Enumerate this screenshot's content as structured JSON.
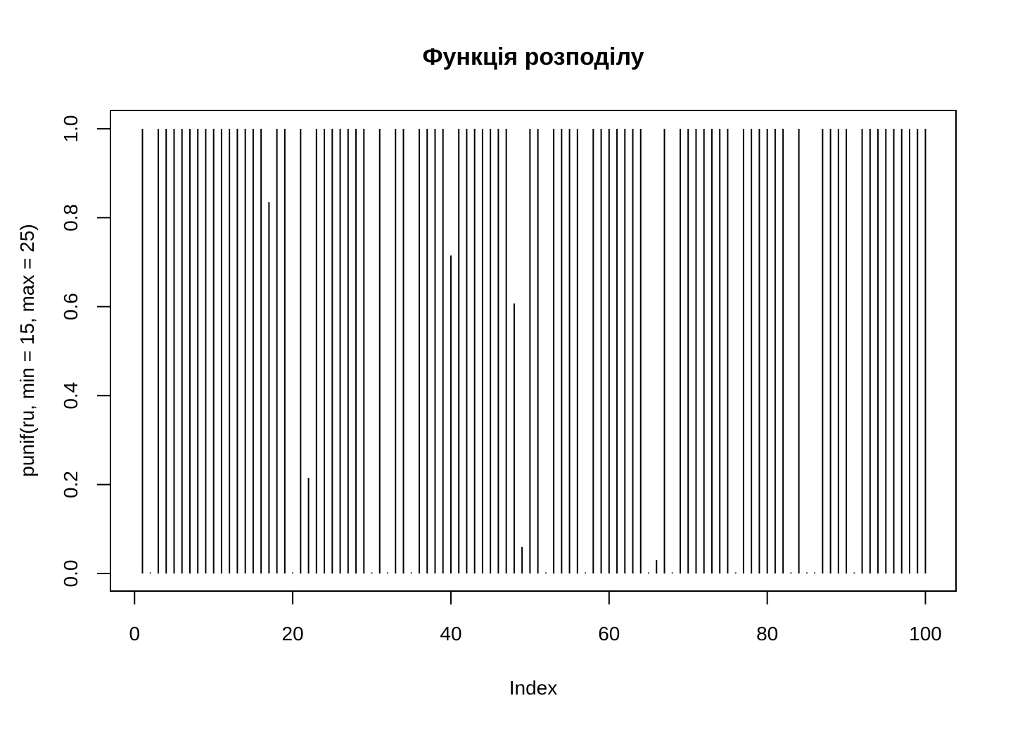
{
  "chart_data": {
    "type": "bar",
    "style": "histogram-lines",
    "title": "Функція розподілу",
    "xlabel": "Index",
    "ylabel": "punif(ru, min = 15, max = 25)",
    "xlim": [
      1,
      100
    ],
    "ylim": [
      0,
      1
    ],
    "x_ticks": [
      0,
      20,
      40,
      60,
      80,
      100
    ],
    "x_tick_labels": [
      "0",
      "20",
      "40",
      "60",
      "80",
      "100"
    ],
    "y_ticks": [
      0,
      0.2,
      0.4,
      0.6,
      0.8,
      1.0
    ],
    "y_tick_labels": [
      "0.0",
      "0.2",
      "0.4",
      "0.6",
      "0.8",
      "1.0"
    ],
    "grid": false,
    "legend": "none",
    "x": [
      1,
      2,
      3,
      4,
      5,
      6,
      7,
      8,
      9,
      10,
      11,
      12,
      13,
      14,
      15,
      16,
      17,
      18,
      19,
      20,
      21,
      22,
      23,
      24,
      25,
      26,
      27,
      28,
      29,
      30,
      31,
      32,
      33,
      34,
      35,
      36,
      37,
      38,
      39,
      40,
      41,
      42,
      43,
      44,
      45,
      46,
      47,
      48,
      49,
      50,
      51,
      52,
      53,
      54,
      55,
      56,
      57,
      58,
      59,
      60,
      61,
      62,
      63,
      64,
      65,
      66,
      67,
      68,
      69,
      70,
      71,
      72,
      73,
      74,
      75,
      76,
      77,
      78,
      79,
      80,
      81,
      82,
      83,
      84,
      85,
      86,
      87,
      88,
      89,
      90,
      91,
      92,
      93,
      94,
      95,
      96,
      97,
      98,
      99,
      100
    ],
    "values": [
      1,
      0,
      1,
      1,
      1,
      1,
      1,
      1,
      1,
      1,
      1,
      1,
      1,
      1,
      1,
      1,
      0.835,
      1,
      1,
      0,
      1,
      0.215,
      1,
      1,
      1,
      1,
      1,
      1,
      1,
      0,
      1,
      0,
      1,
      1,
      0,
      1,
      1,
      1,
      1,
      0.715,
      1,
      1,
      1,
      1,
      1,
      1,
      1,
      0.607,
      0.06,
      1,
      1,
      0,
      1,
      1,
      1,
      1,
      0,
      1,
      1,
      1,
      1,
      1,
      1,
      1,
      0,
      0.03,
      1,
      0,
      1,
      1,
      1,
      1,
      1,
      1,
      1,
      0,
      1,
      1,
      1,
      1,
      1,
      1,
      0,
      1,
      0,
      0,
      1,
      1,
      1,
      1,
      0,
      1,
      1,
      1,
      1,
      1,
      1,
      1,
      1,
      1
    ],
    "colors": {
      "line": "#000000",
      "background": "#ffffff"
    }
  }
}
